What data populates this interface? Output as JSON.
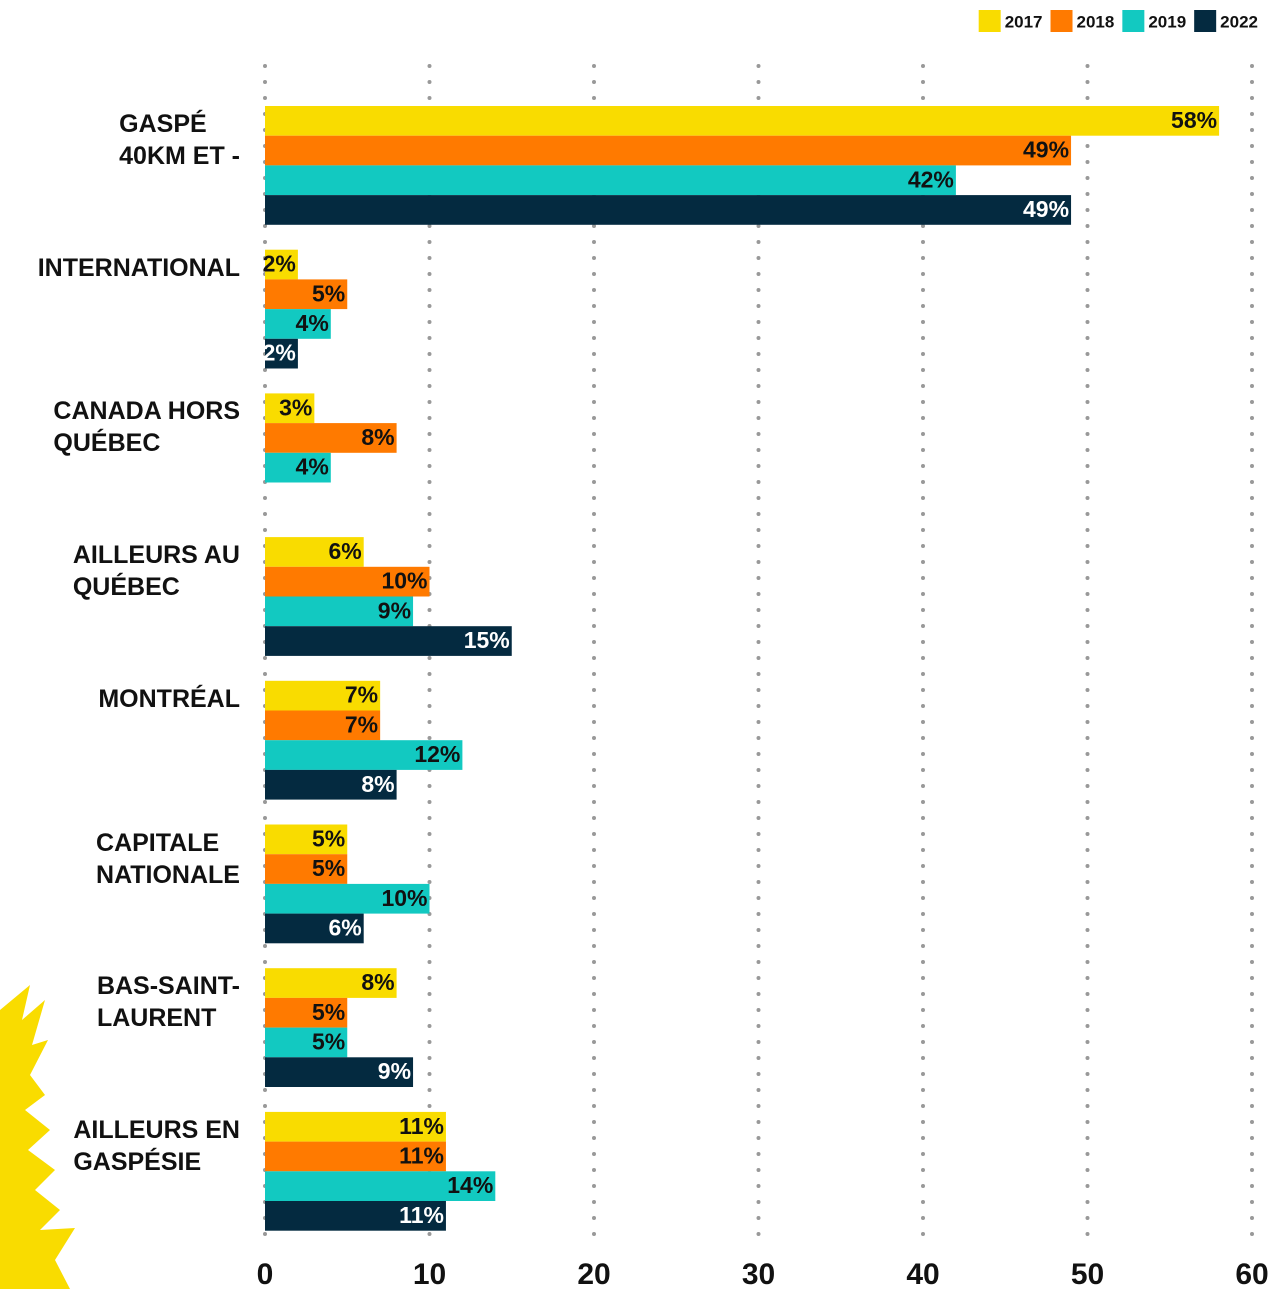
{
  "chart_data": {
    "type": "hbar",
    "categories": [
      "GASPÉ\n40KM ET -",
      "INTERNATIONAL",
      "CANADA HORS\nQUÉBEC",
      "AILLEURS AU\nQUÉBEC",
      "MONTRÉAL",
      "CAPITALE\nNATIONALE",
      "BAS-SAINT-\nLAURENT",
      "AILLEURS EN\nGASPÉSIE"
    ],
    "series": [
      {
        "name": "2017",
        "color": "#f9dc00",
        "label_color": "#111111",
        "values": [
          58,
          2,
          3,
          6,
          7,
          5,
          8,
          11
        ],
        "value_labels": [
          "58%",
          "2%",
          "3%",
          "6%",
          "7%",
          "5%",
          "8%",
          "11%"
        ]
      },
      {
        "name": "2018",
        "color": "#ff7a00",
        "label_color": "#111111",
        "values": [
          49,
          5,
          8,
          10,
          7,
          5,
          5,
          11
        ],
        "value_labels": [
          "49%",
          "5%",
          "8%",
          "10%",
          "7%",
          "5%",
          "5%",
          "11%"
        ]
      },
      {
        "name": "2019",
        "color": "#12c9c1",
        "label_color": "#111111",
        "values": [
          42,
          4,
          4,
          9,
          12,
          10,
          5,
          14
        ],
        "value_labels": [
          "42%",
          "4%",
          "4%",
          "9%",
          "12%",
          "10%",
          "5%",
          "14%"
        ]
      },
      {
        "name": "2022",
        "color": "#042a40",
        "label_color": "#ffffff",
        "values": [
          49,
          2,
          null,
          15,
          8,
          6,
          9,
          11
        ],
        "value_labels": [
          "49%",
          "2%",
          null,
          "15%",
          "8%",
          "6%",
          "9%",
          "11%"
        ]
      }
    ],
    "xlim": [
      0,
      60
    ],
    "xticks": [
      0,
      10,
      20,
      30,
      40,
      50,
      60
    ],
    "grid": true,
    "legend": "top-right"
  }
}
